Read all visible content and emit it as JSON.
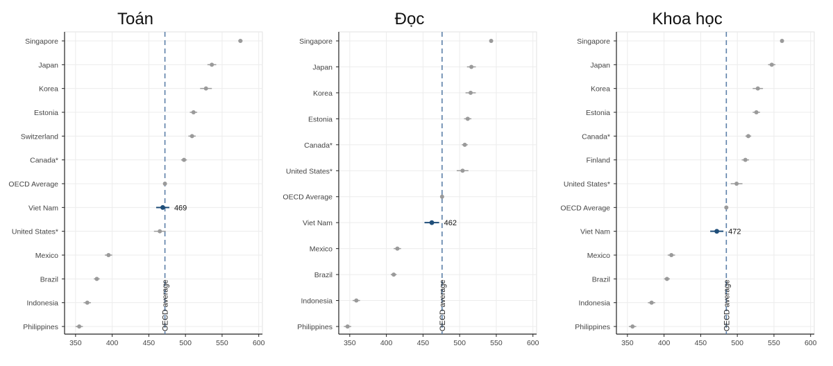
{
  "colors": {
    "point": "#9a9a9a",
    "highlight": "#1f4e79",
    "ref_line": "#5b7fa8",
    "grid": "#ececec"
  },
  "chart_data": [
    {
      "type": "scatter",
      "title": "Toán",
      "categories": [
        "Singapore",
        "Japan",
        "Korea",
        "Estonia",
        "Switzerland",
        "Canada*",
        "OECD Average",
        "Viet Nam",
        "United States*",
        "Mexico",
        "Brazil",
        "Indonesia",
        "Philippines"
      ],
      "values": [
        575,
        536,
        528,
        511,
        509,
        498,
        472,
        469,
        465,
        395,
        379,
        366,
        355
      ],
      "errors": [
        3,
        6,
        8,
        5,
        5,
        4,
        1,
        9,
        8,
        5,
        4,
        5,
        5
      ],
      "highlight": "Viet Nam",
      "highlight_label": "469",
      "reference_line": {
        "value": 472,
        "label": "OECD average"
      },
      "xlim": [
        335,
        605
      ],
      "xticks": [
        350,
        400,
        450,
        500,
        550,
        600
      ],
      "grid": true
    },
    {
      "type": "scatter",
      "title": "Đọc",
      "categories": [
        "Singapore",
        "Japan",
        "Korea",
        "Estonia",
        "Canada*",
        "United States*",
        "OECD Average",
        "Viet Nam",
        "Mexico",
        "Brazil",
        "Indonesia",
        "Philippines"
      ],
      "values": [
        543,
        516,
        515,
        511,
        507,
        504,
        476,
        462,
        415,
        410,
        359,
        347
      ],
      "errors": [
        2,
        6,
        7,
        5,
        4,
        8,
        1,
        10,
        5,
        4,
        5,
        5
      ],
      "highlight": "Viet Nam",
      "highlight_label": "462",
      "reference_line": {
        "value": 476,
        "label": "OECD average"
      },
      "xlim": [
        335,
        605
      ],
      "xticks": [
        350,
        400,
        450,
        500,
        550,
        600
      ],
      "grid": true
    },
    {
      "type": "scatter",
      "title": "Khoa học",
      "categories": [
        "Singapore",
        "Japan",
        "Korea",
        "Estonia",
        "Canada*",
        "Finland",
        "United States*",
        "OECD Average",
        "Viet Nam",
        "Mexico",
        "Brazil",
        "Indonesia",
        "Philippines"
      ],
      "values": [
        561,
        547,
        528,
        526,
        515,
        511,
        499,
        485,
        472,
        410,
        404,
        383,
        357
      ],
      "errors": [
        2,
        5,
        7,
        5,
        4,
        5,
        8,
        1,
        9,
        5,
        4,
        5,
        5
      ],
      "highlight": "Viet Nam",
      "highlight_label": "472",
      "reference_line": {
        "value": 485,
        "label": "OECD average"
      },
      "xlim": [
        335,
        605
      ],
      "xticks": [
        350,
        400,
        450,
        500,
        550,
        600
      ],
      "grid": true
    }
  ]
}
